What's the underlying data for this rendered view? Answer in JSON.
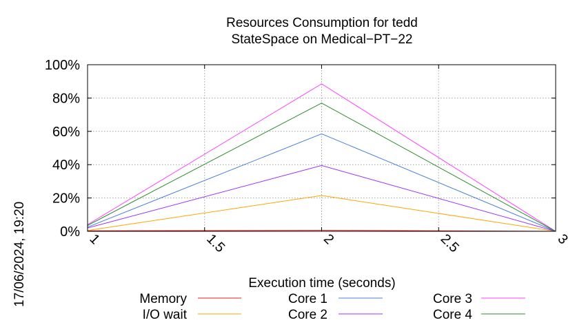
{
  "chart_data": {
    "type": "line",
    "title": "Resources Consumption for tedd",
    "subtitle": "StateSpace on Medical−PT−22",
    "xlabel": "Execution time (seconds)",
    "ylabel": "",
    "x": [
      1,
      2,
      3
    ],
    "xlim": [
      1,
      3
    ],
    "ylim": [
      0,
      100
    ],
    "x_ticks": [
      1,
      1.5,
      2,
      2.5,
      3
    ],
    "x_tick_labels": [
      "1",
      "1.5",
      "2",
      "2.5",
      "3"
    ],
    "y_ticks": [
      0,
      20,
      40,
      60,
      80,
      100
    ],
    "y_tick_labels": [
      "0%",
      "20%",
      "40%",
      "60%",
      "80%",
      "100%"
    ],
    "grid": true,
    "legend_position": "bottom",
    "series": [
      {
        "name": "Memory",
        "color": "#e41a1c",
        "values": [
          0.3,
          0.6,
          0.0
        ]
      },
      {
        "name": "I/O wait",
        "color": "#ffa500",
        "values": [
          0.5,
          21.5,
          0.0
        ]
      },
      {
        "name": "Core 1",
        "color": "#4a7fdc",
        "values": [
          2.5,
          58.5,
          0.0
        ]
      },
      {
        "name": "Core 2",
        "color": "#9b30ff",
        "values": [
          2.0,
          39.5,
          0.0
        ]
      },
      {
        "name": "Core 3",
        "color": "#ff40ff",
        "values": [
          4.0,
          88.5,
          0.0
        ]
      },
      {
        "name": "Core 4",
        "color": "#2e8b2e",
        "values": [
          3.5,
          77.0,
          0.0
        ]
      }
    ]
  },
  "timestamp": "17/06/2024, 19:20"
}
